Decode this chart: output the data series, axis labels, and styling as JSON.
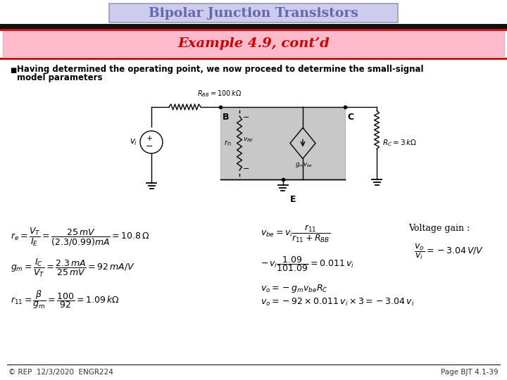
{
  "title": "Bipolar Junction Transistors",
  "subtitle": "Example 4.9, cont’d",
  "title_color": "#6666aa",
  "title_bg": "#ccccee",
  "subtitle_color": "#cc0000",
  "subtitle_bg": "#ffbbcc",
  "subtitle_border": "#ddaacc",
  "bullet_text_line1": "Having determined the operating point, we now proceed to determine the small-signal",
  "bullet_text_line2": "model parameters",
  "footer_left": "© REP  12/3/2020  ENGR224",
  "footer_right": "Page BJT 4.1-39",
  "bg_color": "#ffffff",
  "black_bar_color": "#111111",
  "red_bar_color": "#cc1111",
  "grey_box_color": "#c8c8c8"
}
